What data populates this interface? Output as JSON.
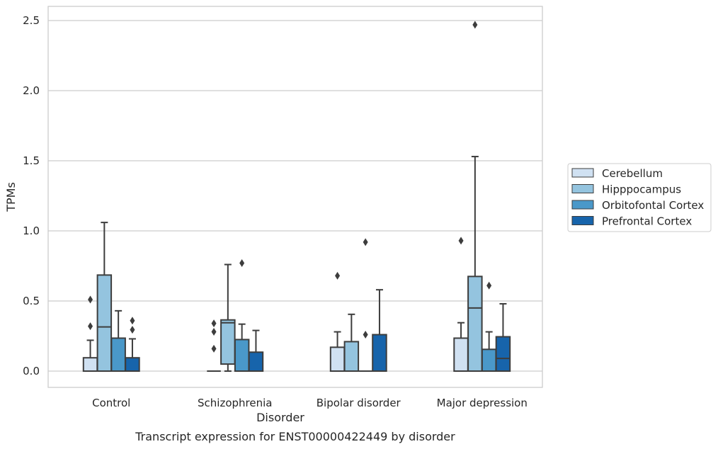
{
  "chart_data": {
    "type": "box",
    "caption": "Transcript expression for ENST00000422449 by disorder",
    "xlabel": "Disorder",
    "ylabel": "TPMs",
    "ylim": [
      -0.12,
      2.6
    ],
    "yticks": [
      0.0,
      0.5,
      1.0,
      1.5,
      2.0,
      2.5
    ],
    "ytick_labels": [
      "0.0",
      "0.5",
      "1.0",
      "1.5",
      "2.0",
      "2.5"
    ],
    "grid": "horizontal",
    "legend_position": "right",
    "categories": [
      "Control",
      "Schizophrenia",
      "Bipolar disorder",
      "Major depression"
    ],
    "series": [
      {
        "name": "Cerebellum",
        "color": "#d0e1f2",
        "boxes": [
          {
            "whisker_low": 0.0,
            "q1": 0.0,
            "median": 0.0,
            "q3": 0.095,
            "whisker_high": 0.22,
            "outliers": [
              0.32,
              0.51
            ]
          },
          {
            "whisker_low": 0.0,
            "q1": 0.0,
            "median": 0.0,
            "q3": 0.0,
            "whisker_high": 0.0,
            "outliers": [
              0.16,
              0.28,
              0.34
            ]
          },
          {
            "whisker_low": 0.0,
            "q1": 0.0,
            "median": 0.0,
            "q3": 0.17,
            "whisker_high": 0.28,
            "outliers": [
              0.68
            ]
          },
          {
            "whisker_low": 0.0,
            "q1": 0.0,
            "median": 0.0,
            "q3": 0.235,
            "whisker_high": 0.345,
            "outliers": [
              0.93
            ]
          }
        ]
      },
      {
        "name": "Hipppocampus",
        "color": "#94c4df",
        "boxes": [
          {
            "whisker_low": 0.0,
            "q1": 0.0,
            "median": 0.315,
            "q3": 0.685,
            "whisker_high": 1.06,
            "outliers": []
          },
          {
            "whisker_low": 0.0,
            "q1": 0.05,
            "median": 0.345,
            "q3": 0.365,
            "whisker_high": 0.76,
            "outliers": []
          },
          {
            "whisker_low": 0.0,
            "q1": 0.0,
            "median": 0.0,
            "q3": 0.21,
            "whisker_high": 0.405,
            "outliers": []
          },
          {
            "whisker_low": 0.0,
            "q1": 0.0,
            "median": 0.45,
            "q3": 0.675,
            "whisker_high": 1.53,
            "outliers": [
              2.47
            ]
          }
        ]
      },
      {
        "name": "Orbitofontal Cortex",
        "color": "#4a98c9",
        "boxes": [
          {
            "whisker_low": 0.0,
            "q1": 0.0,
            "median": 0.0,
            "q3": 0.235,
            "whisker_high": 0.43,
            "outliers": []
          },
          {
            "whisker_low": 0.0,
            "q1": 0.0,
            "median": 0.0,
            "q3": 0.225,
            "whisker_high": 0.335,
            "outliers": [
              0.77
            ]
          },
          {
            "whisker_low": 0.0,
            "q1": 0.0,
            "median": 0.0,
            "q3": 0.0,
            "whisker_high": 0.0,
            "outliers": [
              0.26,
              0.92
            ]
          },
          {
            "whisker_low": 0.0,
            "q1": 0.0,
            "median": 0.0,
            "q3": 0.155,
            "whisker_high": 0.28,
            "outliers": [
              0.61
            ]
          }
        ]
      },
      {
        "name": "Prefrontal Cortex",
        "color": "#1764ab",
        "boxes": [
          {
            "whisker_low": 0.0,
            "q1": 0.0,
            "median": 0.0,
            "q3": 0.095,
            "whisker_high": 0.23,
            "outliers": [
              0.295,
              0.36
            ]
          },
          {
            "whisker_low": 0.0,
            "q1": 0.0,
            "median": 0.0,
            "q3": 0.135,
            "whisker_high": 0.29,
            "outliers": []
          },
          {
            "whisker_low": 0.0,
            "q1": 0.0,
            "median": 0.0,
            "q3": 0.26,
            "whisker_high": 0.58,
            "outliers": []
          },
          {
            "whisker_low": 0.0,
            "q1": 0.0,
            "median": 0.09,
            "q3": 0.245,
            "whisker_high": 0.48,
            "outliers": []
          }
        ]
      }
    ]
  }
}
